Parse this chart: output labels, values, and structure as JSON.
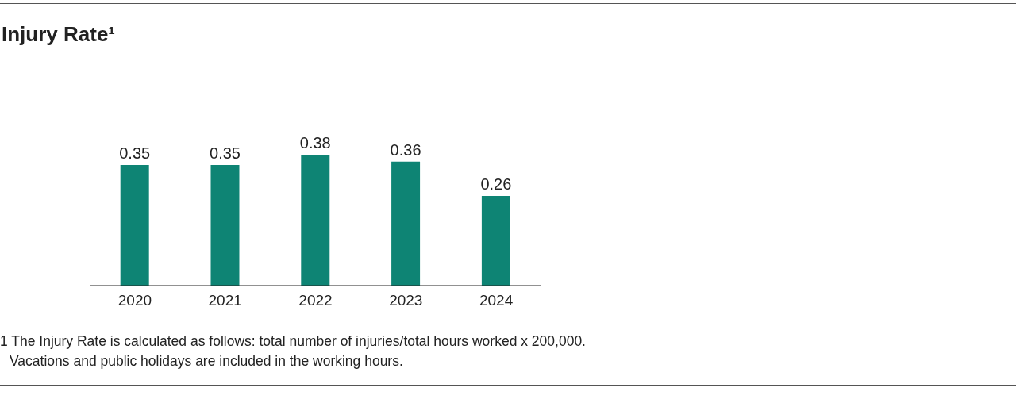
{
  "chart_data": {
    "type": "bar",
    "title": "Injury Rate¹",
    "categories": [
      "2020",
      "2021",
      "2022",
      "2023",
      "2024"
    ],
    "values": [
      0.35,
      0.35,
      0.38,
      0.36,
      0.26
    ],
    "color": "#0e8474",
    "data_labels": true,
    "annotations": [
      "1 The Injury Rate is calculated as follows: total number of injuries/total hours worked x 200,000.",
      "Vacations and public holidays are included in the working hours."
    ]
  }
}
